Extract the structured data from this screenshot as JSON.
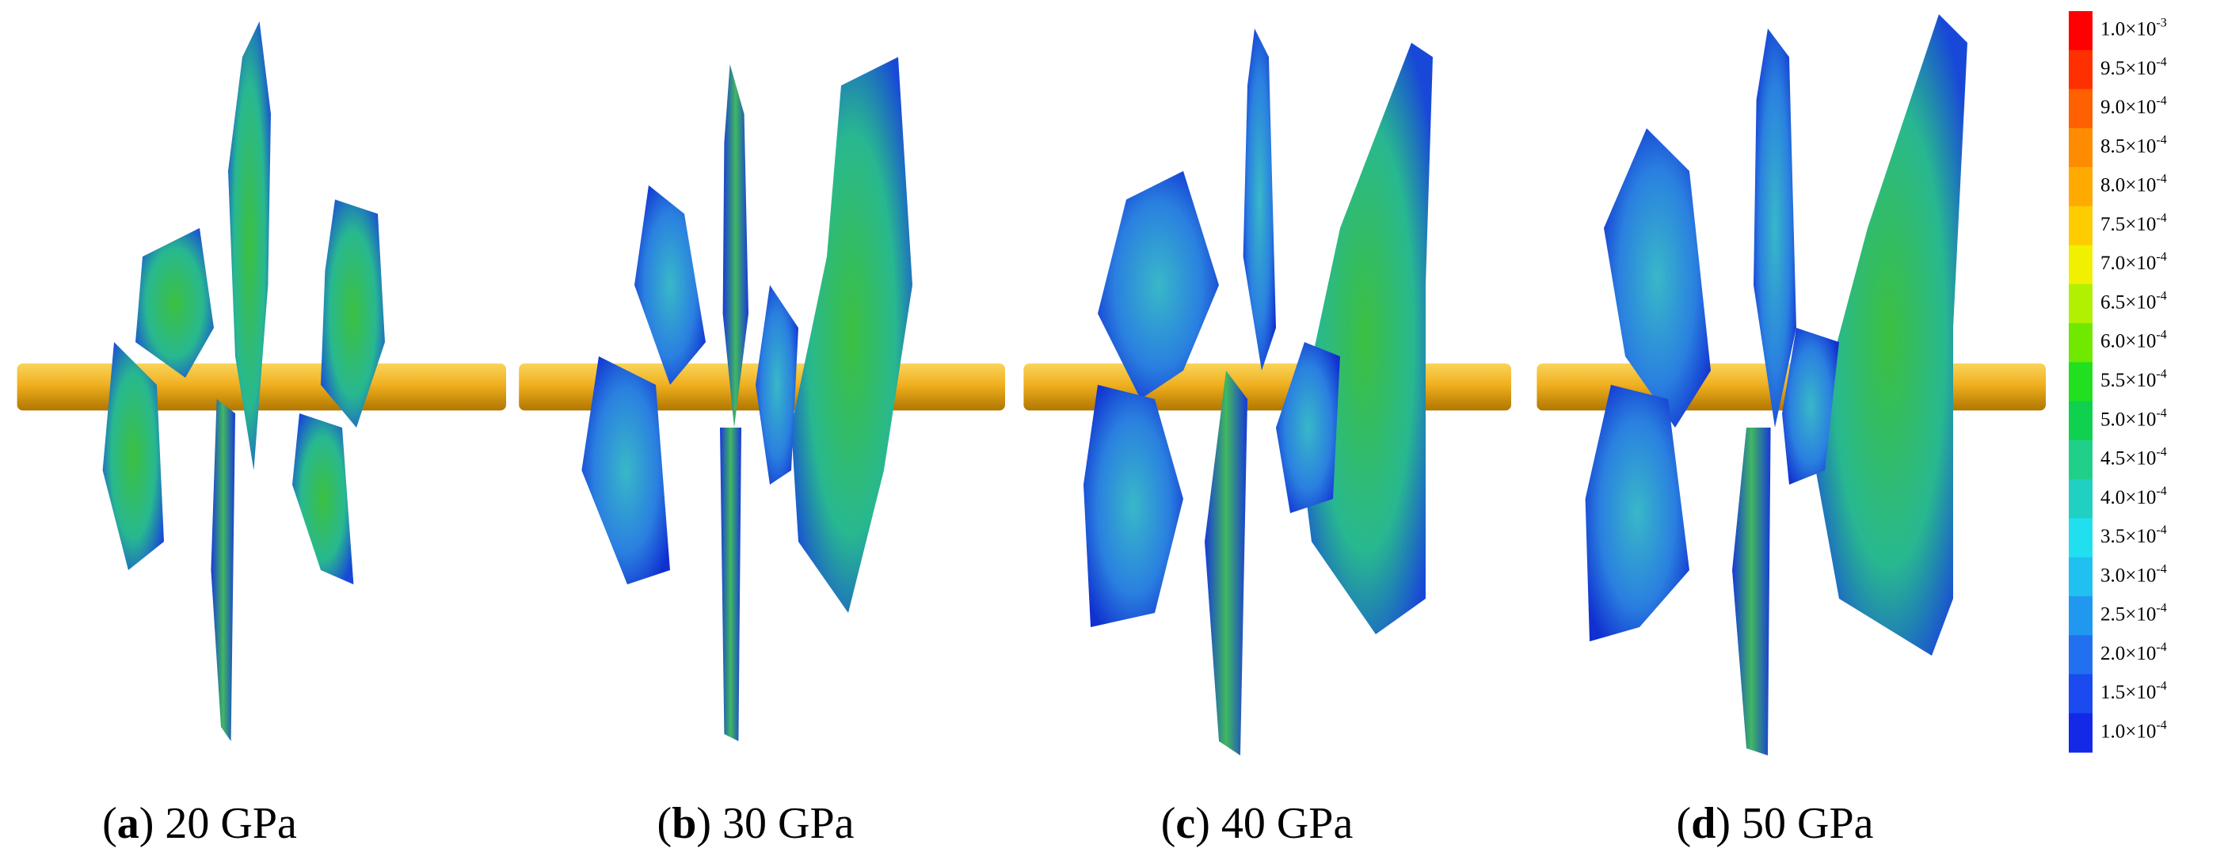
{
  "panels": [
    {
      "open": "(",
      "letter": "a",
      "close": ")",
      "caption": "20 GPa"
    },
    {
      "open": "(",
      "letter": "b",
      "close": ")",
      "caption": "30 GPa"
    },
    {
      "open": "(",
      "letter": "c",
      "close": ")",
      "caption": "40 GPa"
    },
    {
      "open": "(",
      "letter": "d",
      "close": ")",
      "caption": "50 GPa"
    }
  ],
  "colorbar": [
    {
      "base": "1.0×10",
      "exp": "-3",
      "color": "#ff0000"
    },
    {
      "base": "9.5×10",
      "exp": "-4",
      "color": "#ff3000"
    },
    {
      "base": "9.0×10",
      "exp": "-4",
      "color": "#ff6000"
    },
    {
      "base": "8.5×10",
      "exp": "-4",
      "color": "#ff8c00"
    },
    {
      "base": "8.0×10",
      "exp": "-4",
      "color": "#ffaa00"
    },
    {
      "base": "7.5×10",
      "exp": "-4",
      "color": "#ffcc00"
    },
    {
      "base": "7.0×10",
      "exp": "-4",
      "color": "#f0f000"
    },
    {
      "base": "6.5×10",
      "exp": "-4",
      "color": "#b0f000"
    },
    {
      "base": "6.0×10",
      "exp": "-4",
      "color": "#70e800"
    },
    {
      "base": "5.5×10",
      "exp": "-4",
      "color": "#20e020"
    },
    {
      "base": "5.0×10",
      "exp": "-4",
      "color": "#10d050"
    },
    {
      "base": "4.5×10",
      "exp": "-4",
      "color": "#20d08a"
    },
    {
      "base": "4.0×10",
      "exp": "-4",
      "color": "#20d0c0"
    },
    {
      "base": "3.5×10",
      "exp": "-4",
      "color": "#20e0f0"
    },
    {
      "base": "3.0×10",
      "exp": "-4",
      "color": "#20c0f0"
    },
    {
      "base": "2.5×10",
      "exp": "-4",
      "color": "#2098f0"
    },
    {
      "base": "2.0×10",
      "exp": "-4",
      "color": "#2070f0"
    },
    {
      "base": "1.5×10",
      "exp": "-4",
      "color": "#1a4af0"
    },
    {
      "base": "1.0×10",
      "exp": "-4",
      "color": "#1428e8"
    }
  ]
}
